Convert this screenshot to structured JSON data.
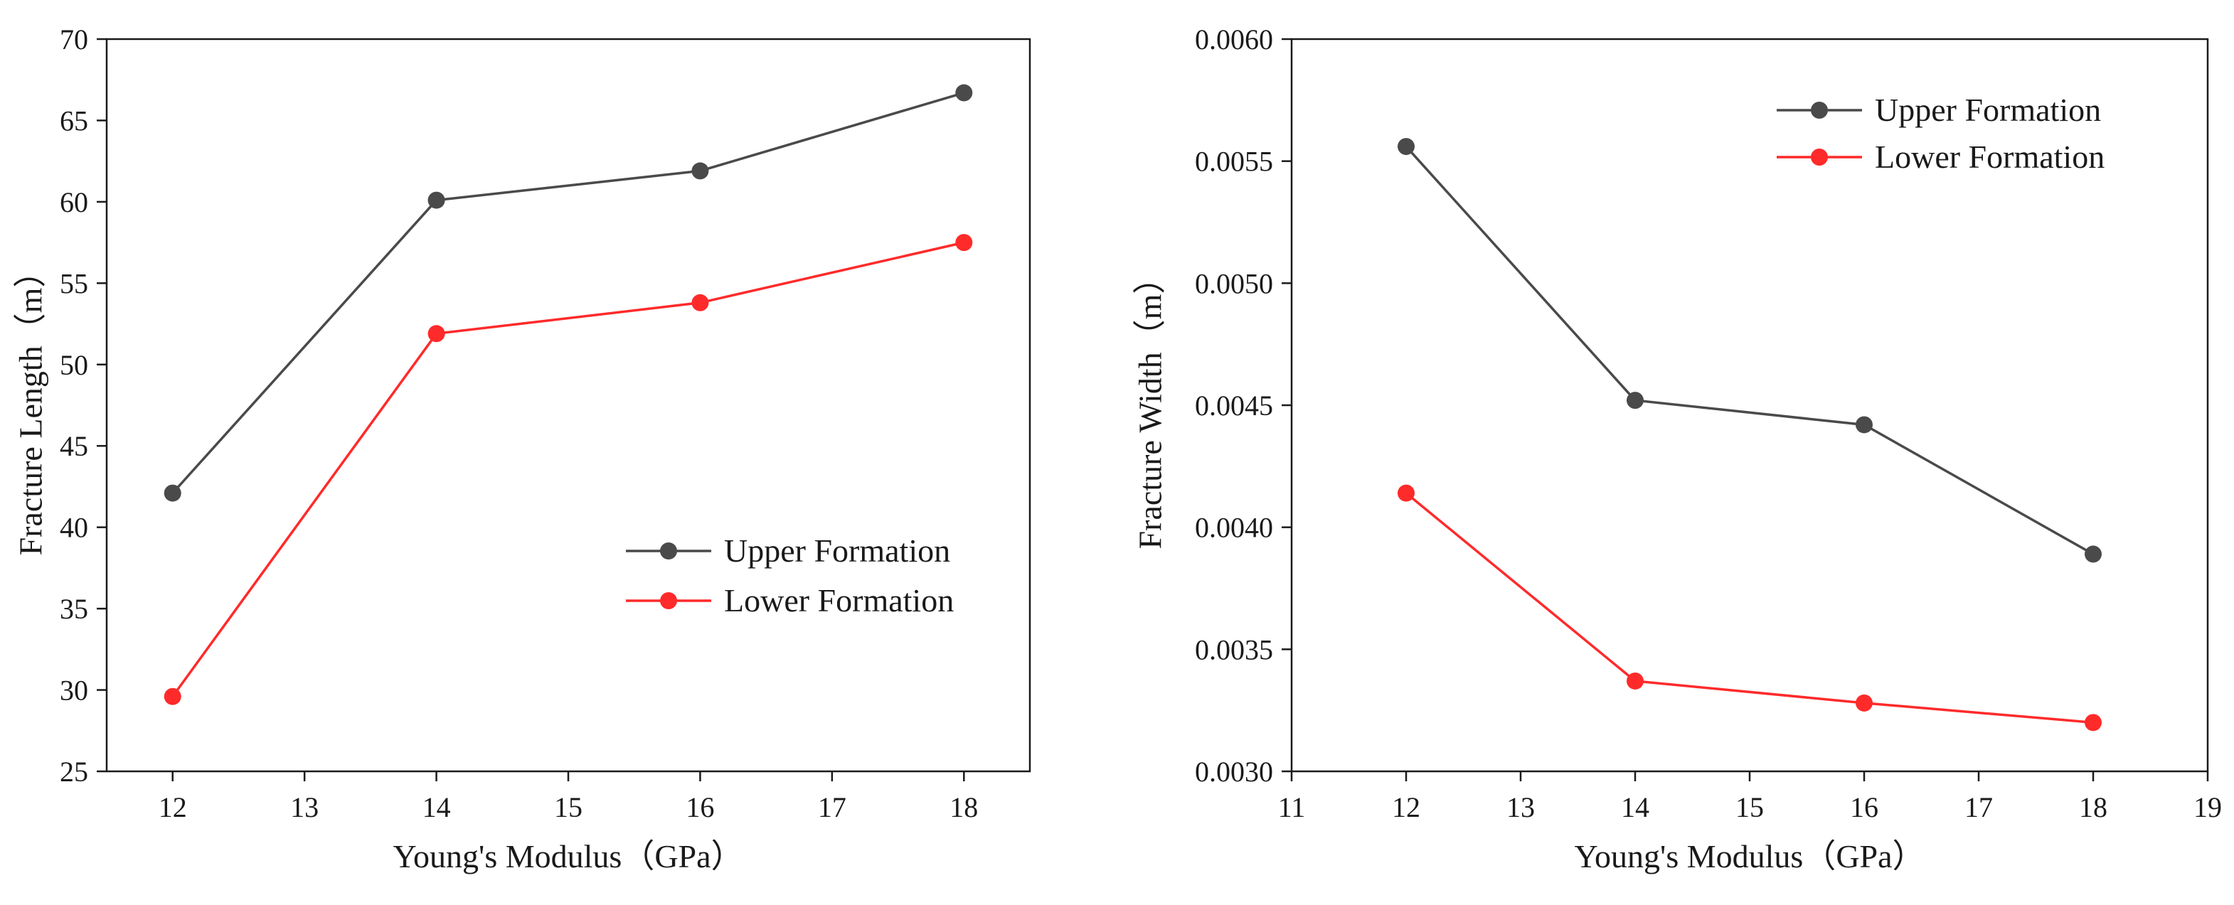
{
  "chart_data": [
    {
      "type": "line",
      "title": "",
      "xlabel": "Young's Modulus（GPa）",
      "ylabel": "Fracture Length（m）",
      "xlim": [
        11.5,
        18.5
      ],
      "ylim": [
        25,
        70
      ],
      "xticks": [
        12,
        13,
        14,
        15,
        16,
        17,
        18
      ],
      "yticks": [
        25,
        30,
        35,
        40,
        45,
        50,
        55,
        60,
        65,
        70
      ],
      "x": [
        12,
        14,
        16,
        18
      ],
      "series": [
        {
          "name": "Upper Formation",
          "color": "#4a4a4a",
          "values": [
            42.1,
            60.1,
            61.9,
            66.7
          ]
        },
        {
          "name": "Lower Formation",
          "color": "#ff2a2a",
          "values": [
            29.6,
            51.9,
            53.8,
            57.5
          ]
        }
      ],
      "legend": "lower-right",
      "grid": false
    },
    {
      "type": "line",
      "title": "",
      "xlabel": "Young's Modulus（GPa）",
      "ylabel": "Fracture Width（m）",
      "xlim": [
        11,
        19
      ],
      "ylim": [
        0.003,
        0.006
      ],
      "xticks": [
        11,
        12,
        13,
        14,
        15,
        16,
        17,
        18,
        19
      ],
      "yticks": [
        "0.0030",
        "0.0035",
        "0.0040",
        "0.0045",
        "0.0050",
        "0.0055",
        "0.0060"
      ],
      "x": [
        12,
        14,
        16,
        18
      ],
      "series": [
        {
          "name": "Upper Formation",
          "color": "#4a4a4a",
          "values": [
            0.00556,
            0.00452,
            0.00442,
            0.00389
          ]
        },
        {
          "name": "Lower Formation",
          "color": "#ff2a2a",
          "values": [
            0.00414,
            0.00337,
            0.00328,
            0.0032
          ]
        }
      ],
      "legend": "top-right",
      "grid": false
    }
  ]
}
